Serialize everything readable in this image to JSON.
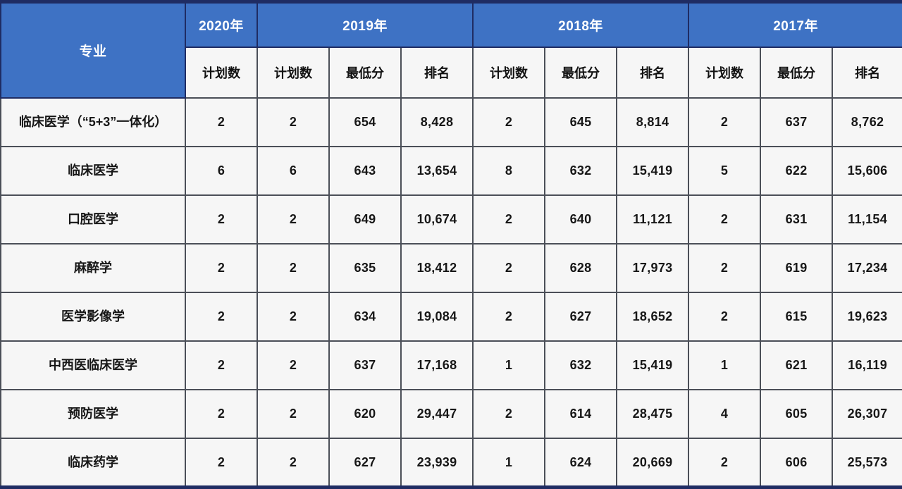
{
  "colors": {
    "header_blue": "#3e72c4",
    "navy_border": "#1f2c63",
    "grid_border": "#4b4f58",
    "cell_background": "#f6f6f6",
    "header_text": "#ffffff",
    "body_text": "#171717"
  },
  "table": {
    "corner_header": "专业",
    "year_groups": [
      {
        "label": "2020年",
        "metrics": [
          "计划数"
        ]
      },
      {
        "label": "2019年",
        "metrics": [
          "计划数",
          "最低分",
          "排名"
        ]
      },
      {
        "label": "2018年",
        "metrics": [
          "计划数",
          "最低分",
          "排名"
        ]
      },
      {
        "label": "2017年",
        "metrics": [
          "计划数",
          "最低分",
          "排名"
        ]
      }
    ],
    "rows": [
      {
        "major": "临床医学（“5+3”一体化）",
        "values": [
          "2",
          "2",
          "654",
          "8,428",
          "2",
          "645",
          "8,814",
          "2",
          "637",
          "8,762"
        ]
      },
      {
        "major": "临床医学",
        "values": [
          "6",
          "6",
          "643",
          "13,654",
          "8",
          "632",
          "15,419",
          "5",
          "622",
          "15,606"
        ]
      },
      {
        "major": "口腔医学",
        "values": [
          "2",
          "2",
          "649",
          "10,674",
          "2",
          "640",
          "11,121",
          "2",
          "631",
          "11,154"
        ]
      },
      {
        "major": "麻醉学",
        "values": [
          "2",
          "2",
          "635",
          "18,412",
          "2",
          "628",
          "17,973",
          "2",
          "619",
          "17,234"
        ]
      },
      {
        "major": "医学影像学",
        "values": [
          "2",
          "2",
          "634",
          "19,084",
          "2",
          "627",
          "18,652",
          "2",
          "615",
          "19,623"
        ]
      },
      {
        "major": "中西医临床医学",
        "values": [
          "2",
          "2",
          "637",
          "17,168",
          "1",
          "632",
          "15,419",
          "1",
          "621",
          "16,119"
        ]
      },
      {
        "major": "预防医学",
        "values": [
          "2",
          "2",
          "620",
          "29,447",
          "2",
          "614",
          "28,475",
          "4",
          "605",
          "26,307"
        ]
      },
      {
        "major": "临床药学",
        "values": [
          "2",
          "2",
          "627",
          "23,939",
          "1",
          "624",
          "20,669",
          "2",
          "606",
          "25,573"
        ]
      }
    ]
  },
  "chart_data": {
    "type": "table",
    "title": "",
    "columns": [
      "专业",
      "2020年 计划数",
      "2019年 计划数",
      "2019年 最低分",
      "2019年 排名",
      "2018年 计划数",
      "2018年 最低分",
      "2018年 排名",
      "2017年 计划数",
      "2017年 最低分",
      "2017年 排名"
    ],
    "rows": [
      [
        "临床医学（“5+3”一体化）",
        2,
        2,
        654,
        8428,
        2,
        645,
        8814,
        2,
        637,
        8762
      ],
      [
        "临床医学",
        6,
        6,
        643,
        13654,
        8,
        632,
        15419,
        5,
        622,
        15606
      ],
      [
        "口腔医学",
        2,
        2,
        649,
        10674,
        2,
        640,
        11121,
        2,
        631,
        11154
      ],
      [
        "麻醉学",
        2,
        2,
        635,
        18412,
        2,
        628,
        17973,
        2,
        619,
        17234
      ],
      [
        "医学影像学",
        2,
        2,
        634,
        19084,
        2,
        627,
        18652,
        2,
        615,
        19623
      ],
      [
        "中西医临床医学",
        2,
        2,
        637,
        17168,
        1,
        632,
        15419,
        1,
        621,
        16119
      ],
      [
        "预防医学",
        2,
        2,
        620,
        29447,
        2,
        614,
        28475,
        4,
        605,
        26307
      ],
      [
        "临床药学",
        2,
        2,
        627,
        23939,
        1,
        624,
        20669,
        2,
        606,
        25573
      ]
    ]
  }
}
